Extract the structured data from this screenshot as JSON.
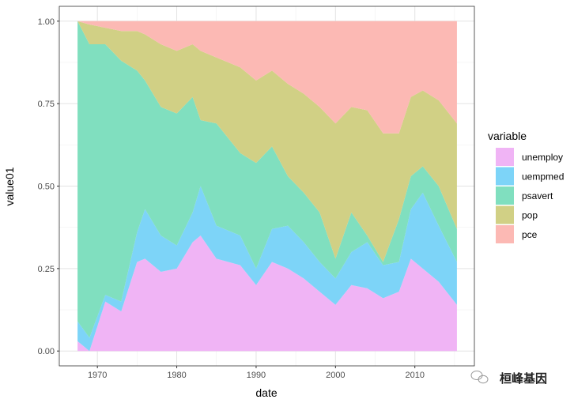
{
  "chart_data": {
    "type": "area",
    "stacked": true,
    "xlabel": "date",
    "ylabel": "value01",
    "xlim": [
      1965.2,
      2017.5
    ],
    "ylim": [
      -0.045,
      1.045
    ],
    "x_ticks": [
      1970,
      1980,
      1990,
      2000,
      2010
    ],
    "y_ticks": [
      0,
      0.25,
      0.5,
      0.75,
      1.0
    ],
    "y_tick_labels": [
      "0.00",
      "0.25",
      "0.50",
      "0.75",
      "1.00"
    ],
    "grid": true,
    "legend": {
      "title": "variable",
      "position": "right"
    },
    "x": [
      1967.5,
      1969,
      1971,
      1973,
      1975,
      1976,
      1978,
      1980,
      1982,
      1983,
      1985,
      1988,
      1990,
      1992,
      1994,
      1996,
      1998,
      2000,
      2002,
      2004,
      2006,
      2008,
      2009.5,
      2011,
      2013,
      2015.3
    ],
    "series": [
      {
        "name": "unemploy",
        "color": "#F0B4F5",
        "values": [
          0.03,
          0.0,
          0.15,
          0.12,
          0.27,
          0.28,
          0.24,
          0.25,
          0.33,
          0.35,
          0.28,
          0.26,
          0.2,
          0.27,
          0.25,
          0.22,
          0.18,
          0.14,
          0.2,
          0.19,
          0.16,
          0.18,
          0.28,
          0.25,
          0.21,
          0.14
        ]
      },
      {
        "name": "uempmed",
        "color": "#7DD4F8",
        "values": [
          0.06,
          0.04,
          0.02,
          0.03,
          0.09,
          0.15,
          0.11,
          0.07,
          0.09,
          0.15,
          0.1,
          0.09,
          0.05,
          0.1,
          0.13,
          0.11,
          0.09,
          0.08,
          0.1,
          0.14,
          0.1,
          0.09,
          0.15,
          0.23,
          0.17,
          0.13
        ]
      },
      {
        "name": "psavert",
        "color": "#80DFBF",
        "values": [
          0.91,
          0.89,
          0.76,
          0.73,
          0.49,
          0.39,
          0.39,
          0.4,
          0.35,
          0.2,
          0.31,
          0.25,
          0.32,
          0.25,
          0.15,
          0.15,
          0.15,
          0.06,
          0.12,
          0.02,
          0.01,
          0.13,
          0.1,
          0.08,
          0.12,
          0.1
        ]
      },
      {
        "name": "pop",
        "color": "#D1D085",
        "values": [
          0.0,
          0.06,
          0.05,
          0.09,
          0.12,
          0.14,
          0.19,
          0.19,
          0.16,
          0.21,
          0.2,
          0.26,
          0.25,
          0.23,
          0.28,
          0.3,
          0.32,
          0.41,
          0.32,
          0.38,
          0.39,
          0.26,
          0.24,
          0.23,
          0.26,
          0.32
        ]
      },
      {
        "name": "pce",
        "color": "#FCB9B4",
        "values": [
          0.0,
          0.01,
          0.02,
          0.03,
          0.03,
          0.04,
          0.07,
          0.09,
          0.07,
          0.09,
          0.11,
          0.14,
          0.18,
          0.15,
          0.19,
          0.22,
          0.26,
          0.31,
          0.26,
          0.27,
          0.34,
          0.34,
          0.23,
          0.21,
          0.24,
          0.31
        ]
      }
    ]
  },
  "watermark": {
    "text": "桓峰基因"
  }
}
